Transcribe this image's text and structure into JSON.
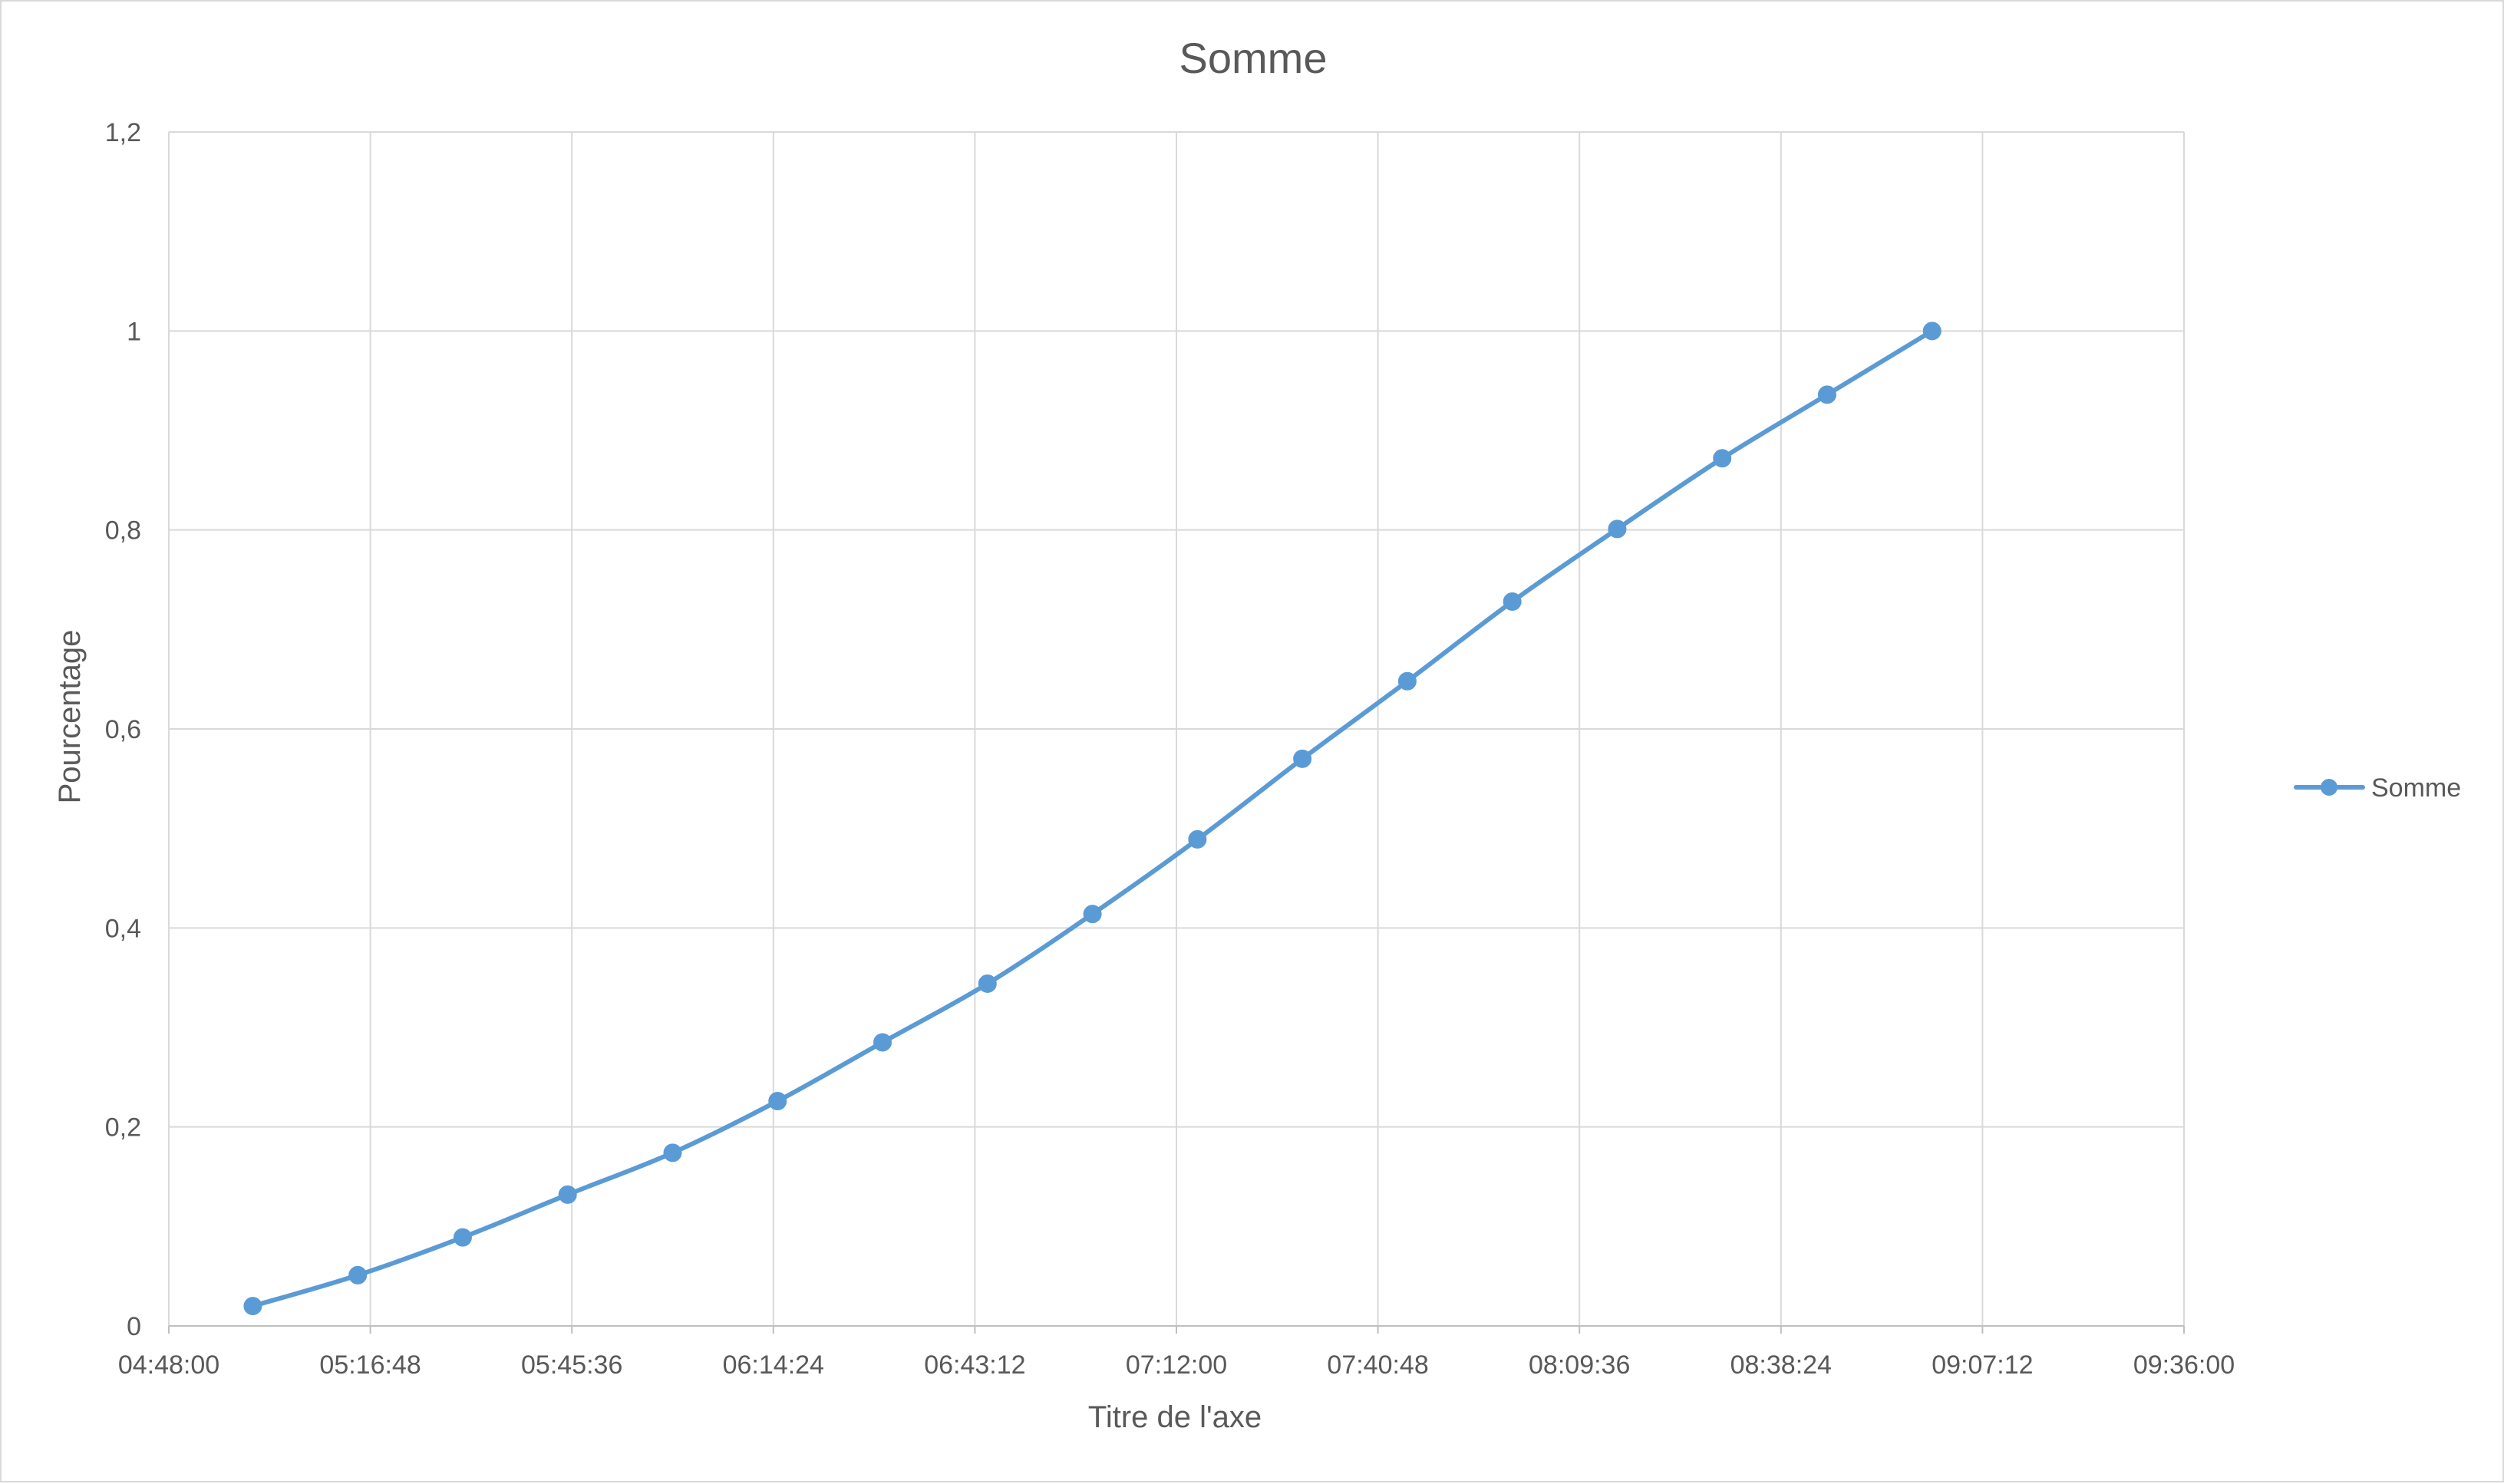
{
  "chart_data": {
    "type": "line",
    "title": "Somme",
    "xlabel": "Titre de l'axe",
    "ylabel": "Pourcentage",
    "x_axis_kind": "time",
    "xlim": [
      "04:48:00",
      "09:36:00"
    ],
    "x_ticks": [
      "04:48:00",
      "05:16:48",
      "05:45:36",
      "06:14:24",
      "06:43:12",
      "07:12:00",
      "07:40:48",
      "08:09:36",
      "08:38:24",
      "09:07:12",
      "09:36:00"
    ],
    "ylim": [
      0,
      1.2
    ],
    "y_ticks": [
      "0",
      "0,2",
      "0,4",
      "0,6",
      "0,8",
      "1",
      "1,2"
    ],
    "grid": true,
    "legend_position": "right",
    "series": [
      {
        "name": "Somme",
        "color": "#5b9bd5",
        "marker": "circle",
        "x": [
          "05:00:00",
          "05:15:00",
          "05:30:00",
          "05:45:00",
          "06:00:00",
          "06:15:00",
          "06:30:00",
          "06:45:00",
          "07:00:00",
          "07:15:00",
          "07:30:00",
          "07:45:00",
          "08:00:00",
          "08:15:00",
          "08:30:00",
          "08:45:00",
          "09:00:00"
        ],
        "values": [
          0.02,
          0.051,
          0.089,
          0.132,
          0.174,
          0.226,
          0.285,
          0.344,
          0.414,
          0.489,
          0.57,
          0.648,
          0.728,
          0.801,
          0.872,
          0.936,
          1.0
        ]
      }
    ]
  }
}
